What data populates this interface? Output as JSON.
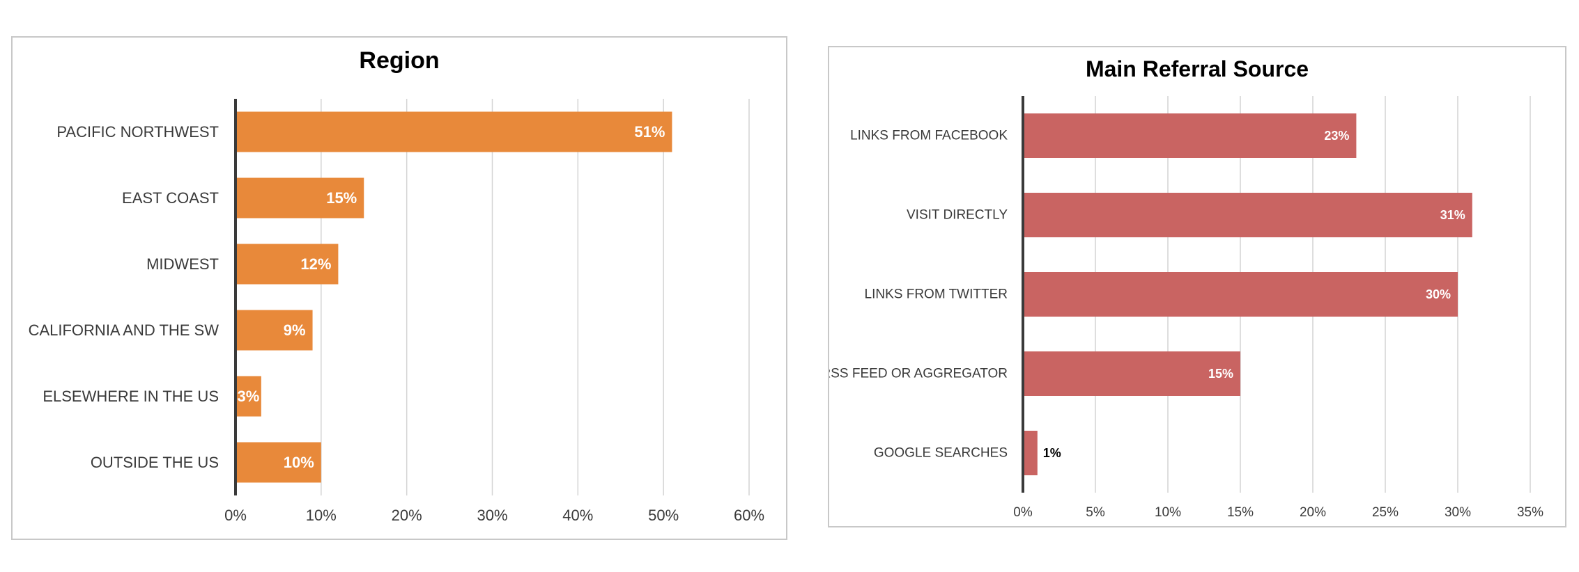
{
  "chart_data": [
    {
      "type": "bar",
      "orientation": "horizontal",
      "title": "Region",
      "categories": [
        "PACIFIC NORTHWEST",
        "EAST COAST",
        "MIDWEST",
        "CALIFORNIA AND THE SW",
        "ELSEWHERE IN THE US",
        "OUTSIDE THE US"
      ],
      "values": [
        51,
        15,
        12,
        9,
        3,
        10
      ],
      "value_labels": [
        "51%",
        "15%",
        "12%",
        "9%",
        "3%",
        "10%"
      ],
      "xlim": [
        0,
        60
      ],
      "xticks": [
        "0%",
        "10%",
        "20%",
        "30%",
        "40%",
        "50%",
        "60%"
      ],
      "grid": true,
      "bar_color": "#E8893A",
      "label_color": "#FFFFFF"
    },
    {
      "type": "bar",
      "orientation": "horizontal",
      "title": "Main Referral Source",
      "categories": [
        "LINKS FROM FACEBOOK",
        "VISIT DIRECTLY",
        "LINKS FROM TWITTER",
        "RSS FEED OR AGGREGATOR",
        "GOOGLE SEARCHES"
      ],
      "values": [
        23,
        31,
        30,
        15,
        1
      ],
      "value_labels": [
        "23%",
        "31%",
        "30%",
        "15%",
        "1%"
      ],
      "xlim": [
        0,
        35
      ],
      "xticks": [
        "0%",
        "5%",
        "10%",
        "15%",
        "20%",
        "25%",
        "30%",
        "35%"
      ],
      "grid": true,
      "bar_color": "#C96462",
      "label_color": "#FFFFFF",
      "outside_label_color": "#000000"
    }
  ]
}
